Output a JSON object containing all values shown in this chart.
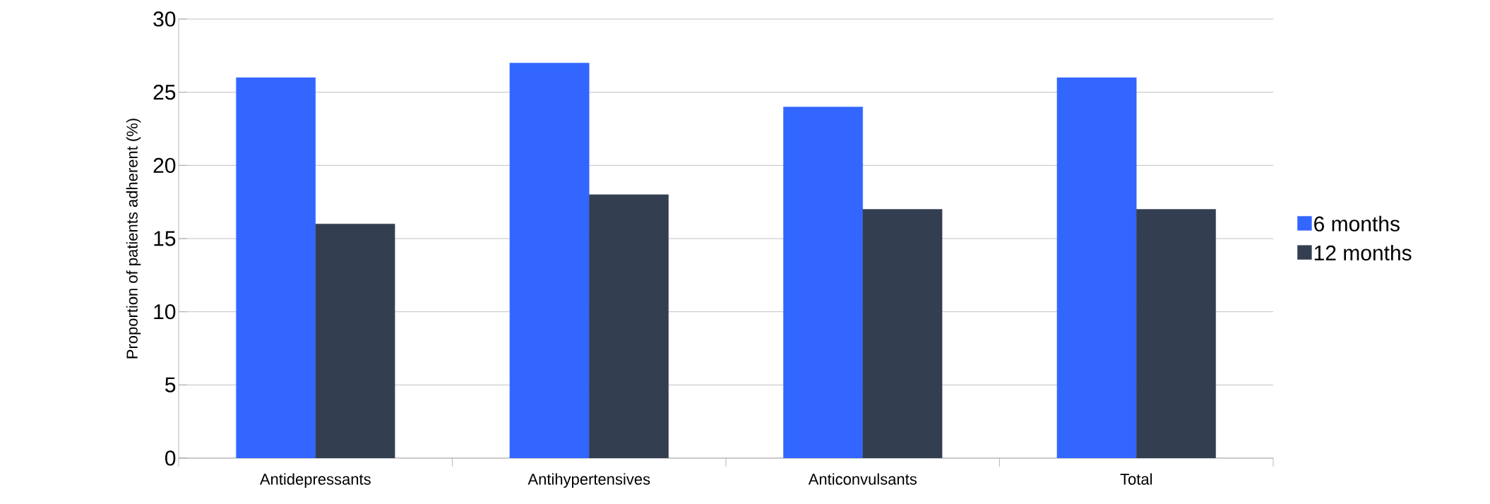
{
  "chart_data": {
    "type": "bar",
    "ylabel": "Proportion of patients adherent (%)",
    "categories": [
      "Antidepressants",
      "Antihypertensives",
      "Anticonvulsants",
      "Total"
    ],
    "series": [
      {
        "name": "6 months",
        "color": "#3366ff",
        "values": [
          26,
          27,
          24,
          26
        ]
      },
      {
        "name": "12 months",
        "color": "#333f50",
        "values": [
          16,
          18,
          17,
          17
        ]
      }
    ],
    "ylim": [
      0,
      30
    ],
    "yticks": [
      0,
      5,
      10,
      15,
      20,
      25,
      30
    ],
    "grid": "y",
    "legend": "right"
  }
}
